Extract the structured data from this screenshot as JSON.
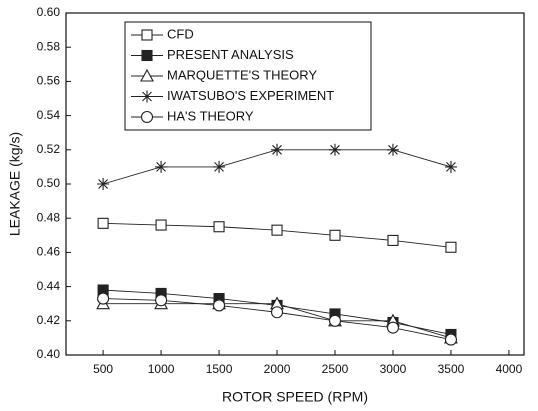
{
  "chart_data": {
    "type": "line",
    "x_label": "ROTOR SPEED (RPM)",
    "y_label": "LEAKAGE (kg/s)",
    "x": [
      500,
      1000,
      1500,
      2000,
      2500,
      3000,
      3500
    ],
    "series": [
      {
        "name": "CFD",
        "color": "#222222",
        "marker": "square-open",
        "values": [
          0.477,
          0.476,
          0.475,
          0.473,
          0.47,
          0.467,
          0.463
        ]
      },
      {
        "name": "PRESENT ANALYSIS",
        "color": "#222222",
        "marker": "square-filled",
        "values": [
          0.438,
          0.436,
          0.433,
          0.429,
          0.424,
          0.419,
          0.412
        ]
      },
      {
        "name": "MARQUETTE'S THEORY",
        "color": "#222222",
        "marker": "triangle-open",
        "values": [
          0.43,
          0.43,
          0.43,
          0.43,
          0.42,
          0.42,
          0.41
        ]
      },
      {
        "name": "IWATSUBO'S EXPERIMENT",
        "color": "#222222",
        "marker": "asterisk",
        "values": [
          0.5,
          0.51,
          0.51,
          0.52,
          0.52,
          0.52,
          0.51
        ]
      },
      {
        "name": "HA'S THEORY",
        "color": "#222222",
        "marker": "circle-open",
        "values": [
          0.433,
          0.432,
          0.429,
          0.425,
          0.42,
          0.416,
          0.409
        ]
      }
    ],
    "xlim": [
      180,
      4130
    ],
    "xticks": [
      500,
      1000,
      1500,
      2000,
      2500,
      3000,
      3500,
      4000
    ],
    "ylim": [
      0.4,
      0.6
    ],
    "yticks": [
      {
        "value": 0.4,
        "label": "0.40"
      },
      0.42,
      0.44,
      0.46,
      0.48,
      {
        "value": 0.5,
        "label": "0.50"
      },
      0.52,
      0.54,
      0.56,
      0.58,
      {
        "value": 0.6,
        "label": "0.60"
      }
    ],
    "legend": "upper-left",
    "grid": false
  }
}
